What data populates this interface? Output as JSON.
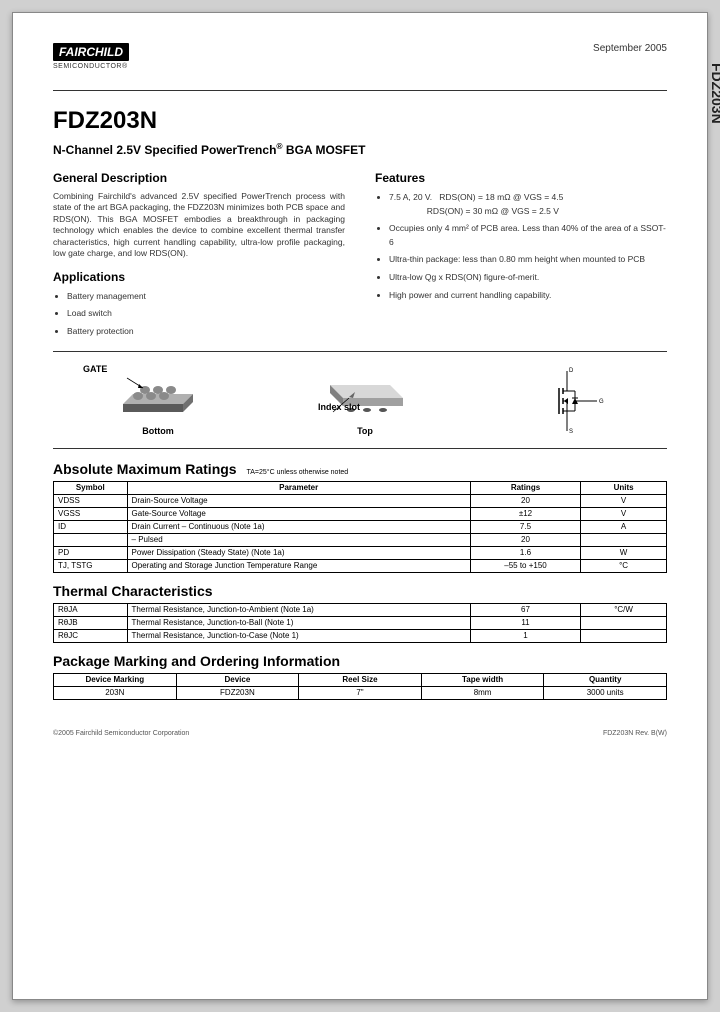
{
  "brand": "FAIRCHILD",
  "brand_sub": "SEMICONDUCTOR®",
  "date": "September 2005",
  "side_label": "FDZ203N",
  "title": "FDZ203N",
  "subtitle_pre": "N-Channel 2.5V Specified PowerTrench",
  "subtitle_post": "BGA MOSFET",
  "desc_head": "General Description",
  "description": "Combining Fairchild's advanced 2.5V specified PowerTrench process with state of the art BGA packaging, the FDZ203N minimizes both PCB space and RDS(ON). This BGA MOSFET embodies a breakthrough in packaging technology which enables the device to combine excellent thermal transfer characteristics, high current handling capability, ultra-low profile packaging, low gate charge, and low RDS(ON).",
  "apps_head": "Applications",
  "applications": [
    "Battery management",
    "Load switch",
    "Battery protection"
  ],
  "feat_head": "Features",
  "features": [
    "7.5 A, 20 V.   RDS(ON) = 18 mΩ @ VGS = 4.5\n                RDS(ON) = 30 mΩ @ VGS = 2.5 V",
    "Occupies only 4 mm² of PCB area. Less than 40% of the area of a SSOT-6",
    "Ultra-thin package: less than 0.80 mm height when mounted to PCB",
    "Ultra-low Qg x RDS(ON) figure-of-merit.",
    "High power and current handling capability."
  ],
  "gate_label": "GATE",
  "index_label": "Index slot",
  "caption_bottom": "Bottom",
  "caption_top": "Top",
  "amr_title": "Absolute Maximum Ratings",
  "amr_note": "TA=25°C unless otherwise noted",
  "amr_headers": [
    "Symbol",
    "Parameter",
    "Ratings",
    "Units"
  ],
  "amr_rows": [
    [
      "VDSS",
      "Drain-Source Voltage",
      "20",
      "V"
    ],
    [
      "VGSS",
      "Gate-Source Voltage",
      "±12",
      "V"
    ],
    [
      "ID",
      "Drain Current    – Continuous                (Note 1a)",
      "7.5",
      "A"
    ],
    [
      "",
      "                       – Pulsed",
      "20",
      ""
    ],
    [
      "PD",
      "Power Dissipation (Steady State)           (Note 1a)",
      "1.6",
      "W"
    ],
    [
      "TJ, TSTG",
      "Operating and Storage Junction Temperature Range",
      "–55 to +150",
      "°C"
    ]
  ],
  "tc_title": "Thermal Characteristics",
  "tc_rows": [
    [
      "RθJA",
      "Thermal Resistance, Junction-to-Ambient    (Note 1a)",
      "67",
      "°C/W"
    ],
    [
      "RθJB",
      "Thermal Resistance, Junction-to-Ball         (Note 1)",
      "11",
      ""
    ],
    [
      "RθJC",
      "Thermal Resistance, Junction-to-Case        (Note 1)",
      "1",
      ""
    ]
  ],
  "pkg_title": "Package Marking and Ordering Information",
  "pkg_headers": [
    "Device Marking",
    "Device",
    "Reel Size",
    "Tape width",
    "Quantity"
  ],
  "pkg_rows": [
    [
      "203N",
      "FDZ203N",
      "7\"",
      "8mm",
      "3000 units"
    ]
  ],
  "footer_left": "©2005 Fairchild Semiconductor Corporation",
  "footer_right": "FDZ203N Rev. B(W)",
  "colors": {
    "page_bg": "#ffffff",
    "outer_bg": "#d0d0d0",
    "text": "#333333",
    "rule": "#333333",
    "ball": "#8a8a8a",
    "pkg_side": "#5a5a5a",
    "pkg_top": "#b0b0b0"
  }
}
